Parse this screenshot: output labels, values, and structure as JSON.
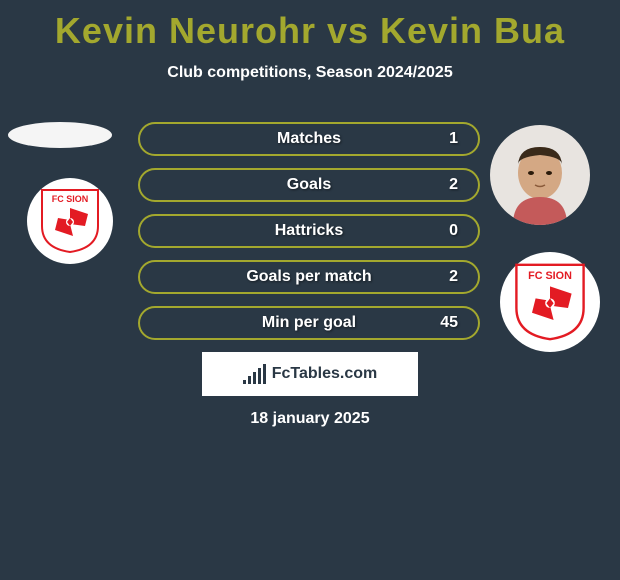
{
  "title": "Kevin Neurohr vs Kevin Bua",
  "subtitle": "Club competitions, Season 2024/2025",
  "date": "18 january 2025",
  "brand": "FcTables.com",
  "colors": {
    "background": "#2a3845",
    "accent": "#a3a82e",
    "text": "#ffffff",
    "club_red": "#e31b23"
  },
  "club": {
    "name": "FC SION",
    "text_color": "#e31b23"
  },
  "stats": [
    {
      "label": "Matches",
      "value": "1"
    },
    {
      "label": "Goals",
      "value": "2"
    },
    {
      "label": "Hattricks",
      "value": "0"
    },
    {
      "label": "Goals per match",
      "value": "2"
    },
    {
      "label": "Min per goal",
      "value": "45"
    }
  ],
  "brand_bar_heights": [
    4,
    8,
    12,
    16,
    20
  ]
}
